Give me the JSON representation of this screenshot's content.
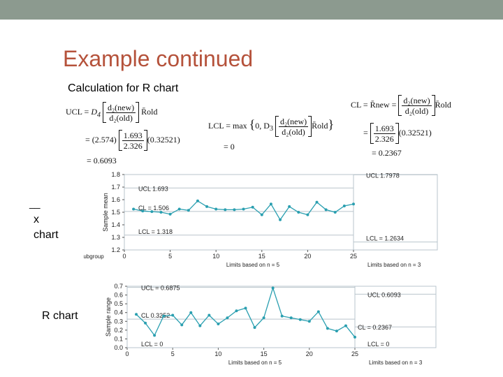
{
  "colors": {
    "topbar": "#8c9a8f",
    "title": "#b5523b",
    "line": "#2a9fb0",
    "grid": "#b9c4cc",
    "text": "#222222"
  },
  "slide": {
    "title": "Example continued",
    "subtitle": "Calculation for R chart",
    "xbar_label_bar": "__",
    "xbar_label_x": "x",
    "xbar_label_chart": "chart",
    "r_label": "R chart"
  },
  "formulas": {
    "ucl_lhs": "UCL =",
    "ucl_d4": "D",
    "ucl_d4_sub": "4",
    "d2new": "d₂(new)",
    "d2old": "d₂(old)",
    "rold": "R̄old",
    "ucl_line2_prefix": "= (2.574)",
    "ucl_num": "1.693",
    "ucl_den": "2.326",
    "ucl_line2_suffix": "(0.32521)",
    "ucl_result": "= 0.6093",
    "lcl_lhs": "LCL = max",
    "lcl_d3": "0, D",
    "lcl_d3_sub": "3",
    "lcl_result": "= 0",
    "cl_lhs": "CL = R̄new =",
    "cl_num": "1.693",
    "cl_den": "2.326",
    "cl_line2_prefix": "=",
    "cl_line2_suffix": "(0.32521)",
    "cl_result": "= 0.2367"
  },
  "chart_data": [
    {
      "type": "line",
      "ylabel": "Sample mean",
      "xlabel_left": "Limits based on n = 5",
      "xlabel_right": "Limits based on n = 3",
      "subgroup_label": "Subgroup",
      "ylim": [
        1.2,
        1.8
      ],
      "yticks": [
        "1.8",
        "1.7",
        "1.6",
        "1.5",
        "1.4",
        "1.3",
        "1.2"
      ],
      "xticks": [
        "0",
        "5",
        "10",
        "15",
        "20",
        "25"
      ],
      "x": [
        1,
        2,
        3,
        4,
        5,
        6,
        7,
        8,
        9,
        10,
        11,
        12,
        13,
        14,
        15,
        16,
        17,
        18,
        19,
        20,
        21,
        22,
        23,
        24,
        25
      ],
      "values": [
        1.525,
        1.51,
        1.505,
        1.5,
        1.485,
        1.525,
        1.515,
        1.59,
        1.545,
        1.525,
        1.52,
        1.52,
        1.525,
        1.54,
        1.48,
        1.565,
        1.44,
        1.545,
        1.5,
        1.48,
        1.58,
        1.52,
        1.5,
        1.55,
        1.565
      ],
      "hidden_after": 25,
      "annotations": {
        "ucl_left": "UCL   1.693",
        "cl_left": "CL = 1.506",
        "lcl_left": "LCL = 1.318",
        "ucl_right": "UCL   1.7978",
        "lcl_right": "LCL = 1.2634"
      },
      "limits_left": {
        "ucl": 1.693,
        "cl": 1.506,
        "lcl": 1.318
      },
      "limits_right": {
        "ucl": 1.7978,
        "lcl": 1.2634
      }
    },
    {
      "type": "line",
      "ylabel": "Sample range",
      "xlabel_left": "Limits based on n = 5",
      "xlabel_right": "Limits based on n = 3",
      "ylim": [
        0.0,
        0.7
      ],
      "yticks": [
        "0.7",
        "0.6",
        "0.5",
        "0.4",
        "0.3",
        "0.2",
        "0.1",
        "0.0"
      ],
      "xticks": [
        "0",
        "5",
        "10",
        "15",
        "20",
        "25"
      ],
      "x": [
        1,
        2,
        3,
        4,
        5,
        6,
        7,
        8,
        9,
        10,
        11,
        12,
        13,
        14,
        15,
        16,
        17,
        18,
        19,
        20,
        21,
        22,
        23,
        24,
        25
      ],
      "values": [
        0.38,
        0.28,
        0.14,
        0.36,
        0.37,
        0.26,
        0.4,
        0.25,
        0.37,
        0.27,
        0.34,
        0.42,
        0.45,
        0.23,
        0.34,
        0.68,
        0.36,
        0.34,
        0.32,
        0.3,
        0.41,
        0.22,
        0.19,
        0.25,
        0.12
      ],
      "annotations": {
        "ucl_left": "UCL = 0.6875",
        "cl_left": "CL   0.3252",
        "lcl_left": "LCL = 0",
        "ucl_right": "UCL   0.6093",
        "cl_right": "CL = 0.2367",
        "lcl_right": "LCL = 0"
      },
      "limits_left": {
        "ucl": 0.6875,
        "cl": 0.3252,
        "lcl": 0
      },
      "limits_right": {
        "ucl": 0.6093,
        "cl": 0.2367,
        "lcl": 0
      }
    }
  ]
}
